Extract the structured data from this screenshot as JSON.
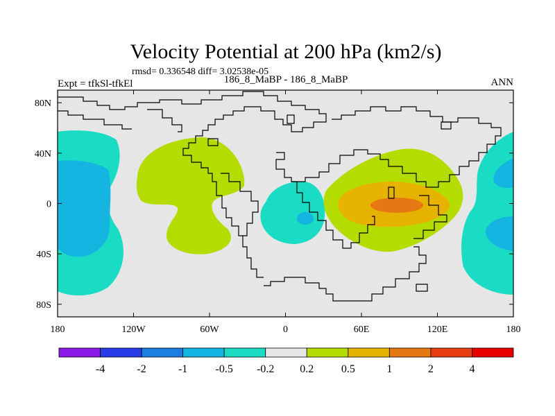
{
  "chart_data": {
    "type": "heatmap",
    "title": "Velocity Potential at 200 hPa (km2/s)",
    "stats_text": "rmsd= 0.336548 diff= 3.02538e-05",
    "left_label": "Expt = tfkSl-tfkEl",
    "center_label": "186_8_MaBP - 186_8_MaBP",
    "right_label": "ANN",
    "x_range": [
      -180,
      180
    ],
    "y_range": [
      -90,
      90
    ],
    "x_ticks": [
      {
        "value": -180,
        "label": "180"
      },
      {
        "value": -120,
        "label": "120W"
      },
      {
        "value": -60,
        "label": "60W"
      },
      {
        "value": 0,
        "label": "0"
      },
      {
        "value": 60,
        "label": "60E"
      },
      {
        "value": 120,
        "label": "120E"
      },
      {
        "value": 180,
        "label": "180"
      }
    ],
    "y_ticks": [
      {
        "value": 80,
        "label": "80N"
      },
      {
        "value": 40,
        "label": "40N"
      },
      {
        "value": 0,
        "label": "0"
      },
      {
        "value": -40,
        "label": "40S"
      },
      {
        "value": -80,
        "label": "80S"
      }
    ],
    "colorbar": {
      "levels": [
        "-4",
        "-2",
        "-1",
        "-0.5",
        "-0.2",
        "0.2",
        "0.5",
        "1",
        "2",
        "4"
      ],
      "colors": [
        "#8c1ae6",
        "#2a3ce6",
        "#1a7fe0",
        "#14b5e0",
        "#1adcc4",
        "#e6e6e6",
        "#b4dc00",
        "#e6b400",
        "#e67814",
        "#e63c14",
        "#e60000"
      ]
    },
    "regions": [
      {
        "name": "west-pacific-negative",
        "level": -0.2,
        "center": [
          -160,
          0
        ],
        "note": "cyan band along western edge, 50N to 70S"
      },
      {
        "name": "west-pacific-core",
        "level": -0.5,
        "center": [
          -160,
          0
        ],
        "note": "blue core 30N to 40S"
      },
      {
        "name": "americas-positive",
        "level": 0.2,
        "center": [
          -70,
          0
        ],
        "note": "yellow-green lobe 50N to 35S"
      },
      {
        "name": "atlantic-negative",
        "level": -0.2,
        "center": [
          10,
          -10
        ],
        "note": "cyan region over tropical Atlantic/Africa"
      },
      {
        "name": "atlantic-core",
        "level": -0.5,
        "center": [
          5,
          -12
        ],
        "note": "small blue spot"
      },
      {
        "name": "indian-ocean-positive",
        "level": 0.2,
        "center": [
          85,
          0
        ],
        "note": "yellow-green 40N to 35S"
      },
      {
        "name": "indian-ocean-mid",
        "level": 0.5,
        "center": [
          85,
          0
        ],
        "note": "gold band"
      },
      {
        "name": "indian-ocean-peak",
        "level": 1,
        "center": [
          85,
          0
        ],
        "note": "orange core"
      },
      {
        "name": "east-pacific-negative",
        "level": -0.2,
        "center": [
          170,
          0
        ],
        "note": "cyan band along eastern edge"
      },
      {
        "name": "east-pacific-core",
        "level": -0.5,
        "center": [
          175,
          0
        ],
        "note": "blue lobes at 20N and 20S"
      }
    ]
  },
  "colors": {
    "background": "#e6e6e6",
    "positive_weak": "#b4dc00",
    "positive_mid": "#e6b400",
    "positive_strong": "#e67814",
    "negative_weak": "#1adcc4",
    "negative_mid": "#14b5e0"
  }
}
